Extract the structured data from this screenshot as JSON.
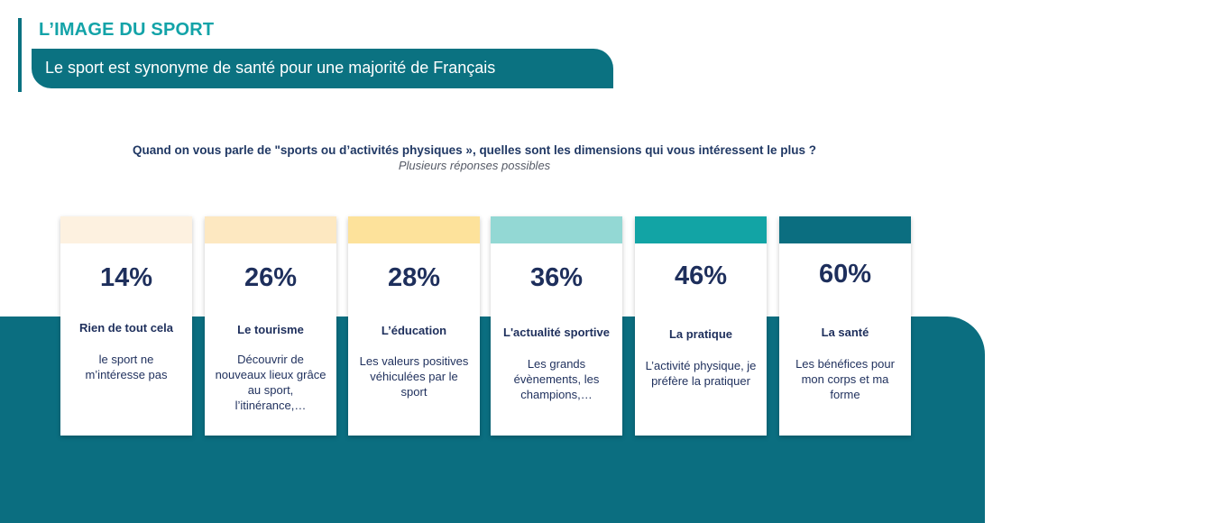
{
  "header": {
    "section_title": "L’IMAGE DU SPORT",
    "subtitle": "Le sport est synonyme de santé pour une majorité de Français"
  },
  "chart_data": {
    "type": "bar",
    "title": "Quand on vous parle de \"sports ou d’activités physiques », quelles sont les dimensions qui vous intéressent le plus ?",
    "subtitle": "Plusieurs réponses possibles",
    "categories": [
      "Rien de tout cela",
      "Le tourisme",
      "L’éducation",
      "L'actualité sportive",
      "La pratique",
      "La santé"
    ],
    "values": [
      14,
      26,
      28,
      36,
      46,
      60
    ],
    "value_labels": [
      "14%",
      "26%",
      "28%",
      "36%",
      "46%",
      "60%"
    ],
    "descriptions": [
      "le sport ne m’intéresse pas",
      "Découvrir de nouveaux lieux grâce au sport, l’itinérance,…",
      "Les valeurs positives véhiculées par le sport",
      "Les grands évènements, les champions,…",
      "L’activité physique, je préfère la pratiquer",
      "Les bénéfices pour mon corps et ma forme"
    ],
    "colors": [
      "#fdf1e0",
      "#fde8c1",
      "#fde29b",
      "#93d8d4",
      "#12a4a5",
      "#0b6e80"
    ],
    "ylim": [
      0,
      100
    ]
  },
  "colors": {
    "accent": "#13a3a8",
    "dark_teal": "#0b6e80",
    "text": "#1e2f5c"
  }
}
